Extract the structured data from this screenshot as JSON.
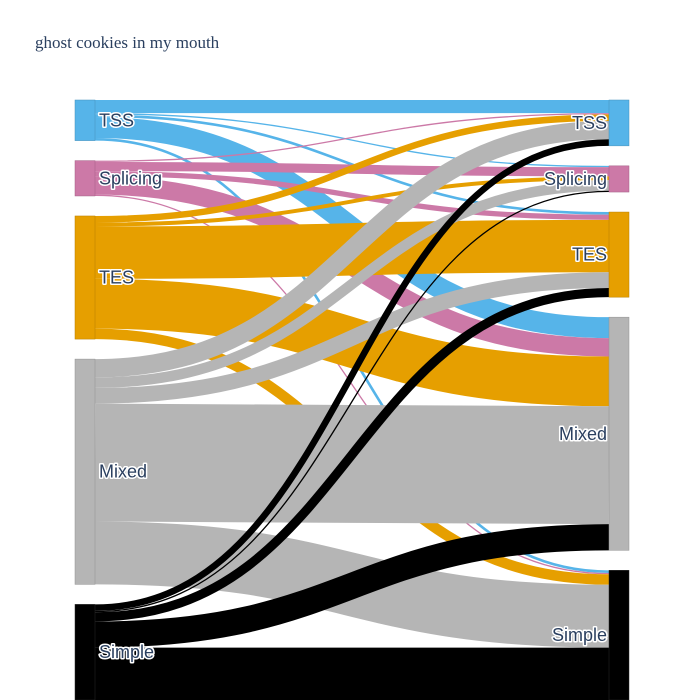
{
  "chart_data": {
    "type": "sankey",
    "title": "ghost cookies in my mouth",
    "nodes": [
      {
        "id": "src-tss",
        "label": "TSS",
        "side": "source",
        "color": "#56B4E9"
      },
      {
        "id": "src-splicing",
        "label": "Splicing",
        "side": "source",
        "color": "#CC79A7"
      },
      {
        "id": "src-tes",
        "label": "TES",
        "side": "source",
        "color": "#E69F00"
      },
      {
        "id": "src-mixed",
        "label": "Mixed",
        "side": "source",
        "color": "#B5B5B5"
      },
      {
        "id": "src-simple",
        "label": "Simple",
        "side": "source",
        "color": "#000000"
      },
      {
        "id": "tgt-tss",
        "label": "TSS",
        "side": "target",
        "color": "#56B4E9"
      },
      {
        "id": "tgt-splicing",
        "label": "Splicing",
        "side": "target",
        "color": "#CC79A7"
      },
      {
        "id": "tgt-tes",
        "label": "TES",
        "side": "target",
        "color": "#E69F00"
      },
      {
        "id": "tgt-mixed",
        "label": "Mixed",
        "side": "target",
        "color": "#B5B5B5"
      },
      {
        "id": "tgt-simple",
        "label": "Simple",
        "side": "target",
        "color": "#000000"
      }
    ],
    "links": [
      {
        "source": "src-tss",
        "target": "tgt-tss",
        "value": 10
      },
      {
        "source": "src-tss",
        "target": "tgt-splicing",
        "value": 1
      },
      {
        "source": "src-tss",
        "target": "tgt-tes",
        "value": 2
      },
      {
        "source": "src-tss",
        "target": "tgt-mixed",
        "value": 16
      },
      {
        "source": "src-tss",
        "target": "tgt-simple",
        "value": 2
      },
      {
        "source": "src-splicing",
        "target": "tgt-tss",
        "value": 1
      },
      {
        "source": "src-splicing",
        "target": "tgt-splicing",
        "value": 7
      },
      {
        "source": "src-splicing",
        "target": "tgt-tes",
        "value": 4
      },
      {
        "source": "src-splicing",
        "target": "tgt-mixed",
        "value": 14
      },
      {
        "source": "src-splicing",
        "target": "tgt-simple",
        "value": 1
      },
      {
        "source": "src-tes",
        "target": "tgt-tss",
        "value": 5
      },
      {
        "source": "src-tes",
        "target": "tgt-splicing",
        "value": 3
      },
      {
        "source": "src-tes",
        "target": "tgt-tes",
        "value": 40
      },
      {
        "source": "src-tes",
        "target": "tgt-mixed",
        "value": 38
      },
      {
        "source": "src-tes",
        "target": "tgt-simple",
        "value": 8
      },
      {
        "source": "src-mixed",
        "target": "tgt-tss",
        "value": 14
      },
      {
        "source": "src-mixed",
        "target": "tgt-splicing",
        "value": 8
      },
      {
        "source": "src-mixed",
        "target": "tgt-tes",
        "value": 12
      },
      {
        "source": "src-mixed",
        "target": "tgt-mixed",
        "value": 90
      },
      {
        "source": "src-mixed",
        "target": "tgt-simple",
        "value": 48
      },
      {
        "source": "src-simple",
        "target": "tgt-tss",
        "value": 5
      },
      {
        "source": "src-simple",
        "target": "tgt-splicing",
        "value": 1
      },
      {
        "source": "src-simple",
        "target": "tgt-tes",
        "value": 7
      },
      {
        "source": "src-simple",
        "target": "tgt-mixed",
        "value": 20
      },
      {
        "source": "src-simple",
        "target": "tgt-simple",
        "value": 40
      }
    ]
  }
}
